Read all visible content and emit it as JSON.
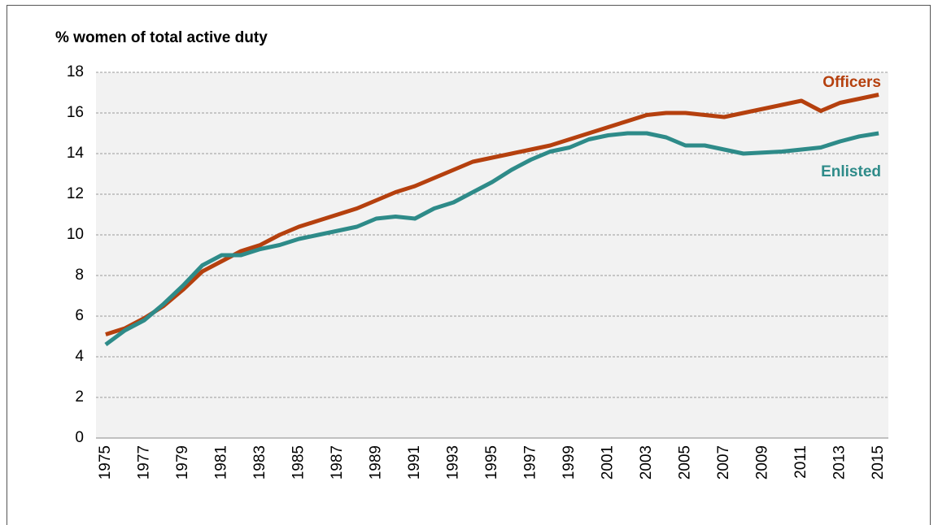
{
  "chart_data": {
    "type": "line",
    "title": "% women of total active duty",
    "categories": [
      "1975",
      null,
      "1977",
      null,
      "1979",
      null,
      "1981",
      null,
      "1983",
      null,
      "1985",
      null,
      "1987",
      null,
      "1989",
      null,
      "1991",
      null,
      "1993",
      null,
      "1995",
      null,
      "1997",
      null,
      "1999",
      null,
      "2001",
      null,
      "2003",
      null,
      "2005",
      null,
      "2007",
      null,
      "2009",
      null,
      "2011",
      null,
      "2013",
      null,
      "2015"
    ],
    "series": [
      {
        "name": "Officers",
        "color": "#b5400e",
        "values": [
          5.1,
          5.4,
          5.9,
          6.5,
          7.3,
          8.2,
          8.7,
          9.2,
          9.5,
          10.0,
          10.4,
          10.7,
          11.0,
          11.3,
          11.7,
          12.1,
          12.4,
          12.8,
          13.2,
          13.6,
          13.8,
          14.0,
          14.2,
          14.4,
          14.7,
          15.0,
          15.3,
          15.6,
          15.9,
          16.0,
          16.0,
          15.9,
          15.8,
          16.0,
          16.2,
          16.4,
          16.6,
          16.1,
          16.5,
          16.7,
          16.9
        ]
      },
      {
        "name": "Enlisted",
        "color": "#2e8b89",
        "values": [
          4.6,
          5.3,
          5.8,
          6.6,
          7.5,
          8.5,
          9.0,
          9.0,
          9.3,
          9.5,
          9.8,
          10.0,
          10.2,
          10.4,
          10.8,
          10.9,
          10.8,
          11.3,
          11.6,
          12.1,
          12.6,
          13.2,
          13.7,
          14.1,
          14.3,
          14.7,
          14.9,
          15.0,
          15.0,
          14.8,
          14.4,
          14.4,
          14.2,
          14.0,
          14.05,
          14.1,
          14.2,
          14.3,
          14.6,
          14.85,
          15.0
        ]
      }
    ],
    "ylim": [
      0,
      18
    ],
    "yticks": [
      0,
      2,
      4,
      6,
      8,
      10,
      12,
      14,
      16,
      18
    ],
    "grid": true
  }
}
